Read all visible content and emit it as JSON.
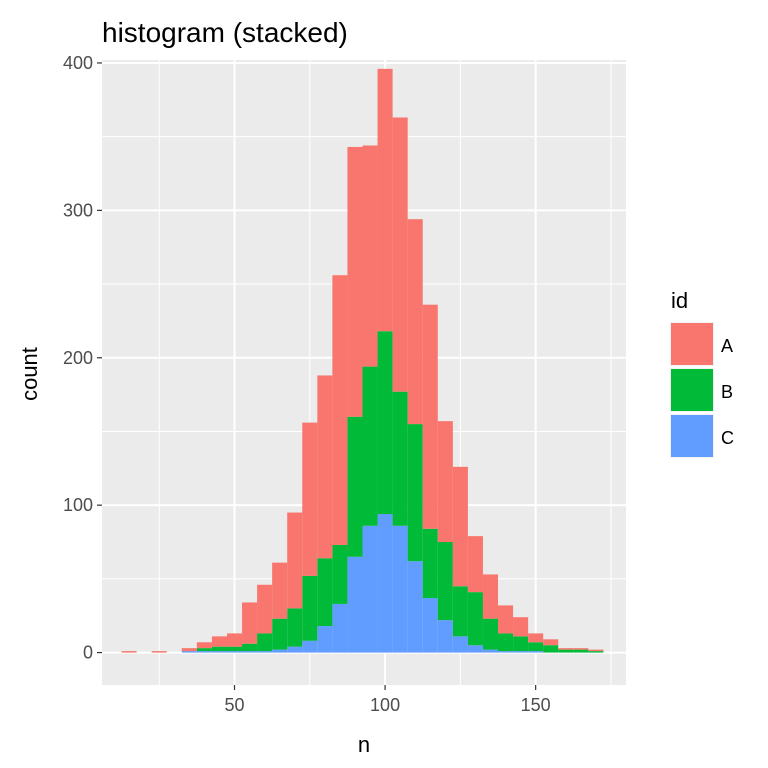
{
  "chart_data": {
    "type": "bar",
    "subtype": "stacked histogram",
    "title": "histogram (stacked)",
    "xlabel": "n",
    "ylabel": "count",
    "xlim": [
      6,
      180
    ],
    "ylim": [
      -22,
      402
    ],
    "xticks": [
      50,
      100,
      150
    ],
    "yticks": [
      0,
      100,
      200,
      300,
      400
    ],
    "grid": true,
    "legend": {
      "title": "id",
      "position": "right",
      "entries": [
        "A",
        "B",
        "C"
      ]
    },
    "colors": {
      "A": "#F8766D",
      "B": "#00BA38",
      "C": "#619CFF",
      "panel": "#EBEBEB",
      "grid": "#FFFFFF",
      "tick": "#333333"
    },
    "bin_width": 5,
    "bins": [
      15,
      20,
      25,
      30,
      35,
      40,
      45,
      50,
      55,
      60,
      65,
      70,
      75,
      80,
      85,
      90,
      95,
      100,
      105,
      110,
      115,
      120,
      125,
      130,
      135,
      140,
      145,
      150,
      155,
      160,
      165,
      170
    ],
    "series": [
      {
        "name": "C",
        "values": [
          0,
          0,
          0,
          0,
          1,
          1,
          1,
          1,
          1,
          1,
          2,
          4,
          8,
          18,
          33,
          65,
          86,
          94,
          86,
          62,
          37,
          22,
          11,
          5,
          2,
          1,
          1,
          1,
          0,
          0,
          0,
          0
        ]
      },
      {
        "name": "B",
        "values": [
          0,
          0,
          0,
          0,
          0,
          2,
          3,
          3,
          5,
          12,
          21,
          26,
          44,
          46,
          40,
          95,
          108,
          124,
          91,
          93,
          47,
          53,
          34,
          36,
          21,
          12,
          10,
          6,
          5,
          2,
          2,
          1
        ]
      },
      {
        "name": "A",
        "values": [
          1,
          0,
          1,
          0,
          2,
          4,
          7,
          9,
          28,
          33,
          38,
          65,
          104,
          124,
          183,
          183,
          150,
          178,
          186,
          139,
          152,
          82,
          81,
          38,
          30,
          19,
          13,
          6,
          4,
          1,
          1,
          1
        ]
      }
    ]
  }
}
